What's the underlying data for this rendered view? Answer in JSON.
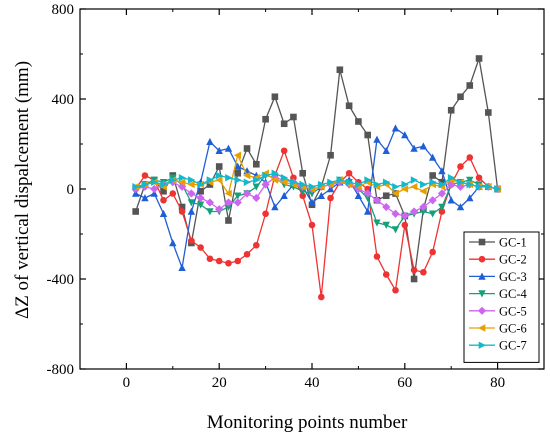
{
  "chart_data": {
    "type": "line",
    "title": "",
    "xlabel": "Monitoring points number",
    "ylabel": "ΔZ of vertical dispalcement (mm)",
    "xlim": [
      -10,
      90
    ],
    "ylim": [
      -800,
      800
    ],
    "xticks": [
      0,
      20,
      40,
      60,
      80
    ],
    "yticks": [
      -800,
      -400,
      0,
      400,
      800
    ],
    "xtick_labels": [
      "0",
      "20",
      "40",
      "60",
      "80"
    ],
    "ytick_labels": [
      "-800",
      "-400",
      "0",
      "400",
      "800"
    ],
    "grid": false,
    "legend_position": "bottom-right",
    "x": [
      2,
      4,
      6,
      8,
      10,
      12,
      14,
      16,
      18,
      20,
      22,
      24,
      26,
      28,
      30,
      32,
      34,
      36,
      38,
      40,
      42,
      44,
      46,
      48,
      50,
      52,
      54,
      56,
      58,
      60,
      62,
      64,
      66,
      68,
      70,
      72,
      74,
      76,
      78,
      80
    ],
    "series": [
      {
        "name": "GC-1",
        "color": "#555555",
        "marker": "square",
        "values": [
          -100,
          20,
          40,
          -10,
          60,
          -80,
          -240,
          -10,
          20,
          100,
          -140,
          70,
          180,
          110,
          310,
          410,
          290,
          320,
          70,
          -70,
          10,
          150,
          530,
          370,
          300,
          240,
          -50,
          -30,
          -20,
          -120,
          -400,
          -90,
          60,
          30,
          350,
          410,
          460,
          580,
          340,
          0
        ]
      },
      {
        "name": "GC-2",
        "color": "#ee3333",
        "marker": "circle",
        "values": [
          0,
          60,
          40,
          -50,
          -20,
          -100,
          -230,
          -260,
          -310,
          -320,
          -330,
          -320,
          -290,
          -250,
          -110,
          60,
          170,
          50,
          -30,
          -160,
          -480,
          -40,
          30,
          70,
          30,
          0,
          -300,
          -380,
          -450,
          -160,
          -360,
          -370,
          -280,
          -100,
          20,
          100,
          140,
          50,
          10,
          0
        ]
      },
      {
        "name": "GC-3",
        "color": "#1f5fd6",
        "marker": "triangle-up",
        "values": [
          -20,
          -40,
          -20,
          -110,
          -240,
          -350,
          -100,
          30,
          210,
          170,
          180,
          100,
          80,
          60,
          30,
          -80,
          -30,
          20,
          10,
          -60,
          -30,
          0,
          30,
          40,
          -30,
          -100,
          220,
          170,
          270,
          240,
          180,
          190,
          140,
          80,
          -50,
          -80,
          -40,
          10,
          10,
          0
        ]
      },
      {
        "name": "GC-4",
        "color": "#13a07a",
        "marker": "triangle-down",
        "values": [
          0,
          20,
          40,
          30,
          50,
          20,
          -60,
          -70,
          -100,
          -100,
          -80,
          -30,
          -20,
          10,
          60,
          50,
          20,
          10,
          -10,
          -20,
          10,
          20,
          40,
          30,
          0,
          -40,
          -150,
          -160,
          -180,
          -120,
          -110,
          -100,
          -110,
          -80,
          20,
          30,
          40,
          20,
          10,
          0
        ]
      },
      {
        "name": "GC-5",
        "color": "#cc66ee",
        "marker": "diamond",
        "values": [
          0,
          10,
          0,
          20,
          30,
          10,
          -20,
          -40,
          -60,
          -90,
          -60,
          -60,
          -20,
          -40,
          20,
          50,
          40,
          30,
          10,
          0,
          10,
          20,
          30,
          20,
          0,
          -20,
          -50,
          -80,
          -110,
          -120,
          -100,
          -80,
          -50,
          -20,
          20,
          10,
          20,
          10,
          10,
          0
        ]
      },
      {
        "name": "GC-6",
        "color": "#e8a000",
        "marker": "triangle-left",
        "values": [
          10,
          20,
          30,
          10,
          40,
          30,
          20,
          20,
          30,
          40,
          -20,
          150,
          60,
          50,
          70,
          40,
          30,
          20,
          10,
          0,
          10,
          20,
          40,
          20,
          10,
          30,
          10,
          20,
          -20,
          0,
          10,
          -10,
          20,
          10,
          40,
          30,
          20,
          10,
          10,
          0
        ]
      },
      {
        "name": "GC-7",
        "color": "#14b8cc",
        "marker": "triangle-right",
        "values": [
          10,
          20,
          30,
          20,
          40,
          50,
          40,
          20,
          40,
          60,
          50,
          40,
          30,
          40,
          60,
          70,
          50,
          30,
          20,
          10,
          20,
          30,
          40,
          30,
          20,
          40,
          20,
          30,
          10,
          20,
          40,
          20,
          30,
          20,
          50,
          30,
          20,
          10,
          10,
          0
        ]
      }
    ]
  }
}
